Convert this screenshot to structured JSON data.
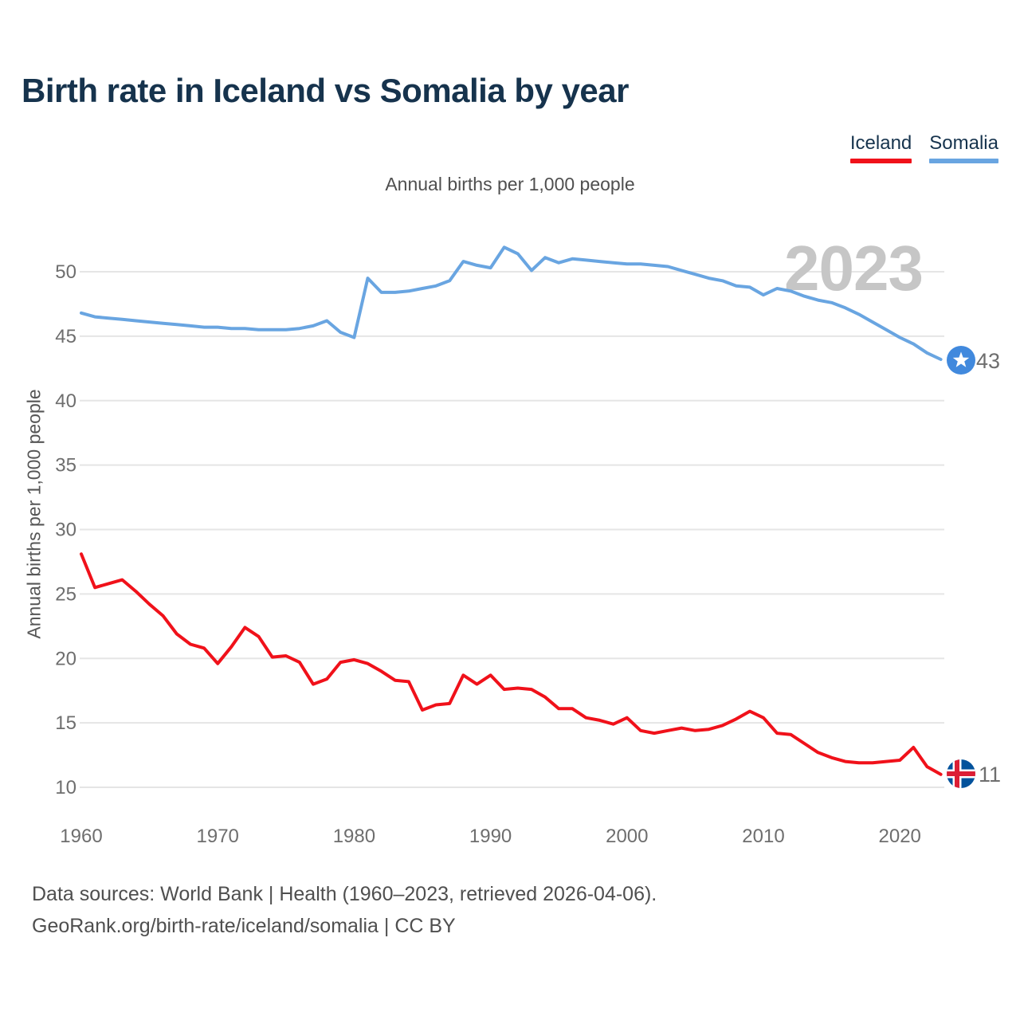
{
  "title": "Birth rate in Iceland vs Somalia by year",
  "subtitle": "Annual births per 1,000 people",
  "y_axis_title": "Annual births per 1,000 people",
  "watermark_year": "2023",
  "legend": {
    "iceland": {
      "label": "Iceland",
      "color": "#f0111a"
    },
    "somalia": {
      "label": "Somalia",
      "color": "#69a5e1"
    }
  },
  "end_labels": {
    "somalia": {
      "value": "43",
      "icon": "somalia-flag-icon",
      "color": "#69a5e1"
    },
    "iceland": {
      "value": "11",
      "icon": "iceland-flag-icon",
      "color": "#f0111a"
    }
  },
  "footer": {
    "line1": "Data sources: World Bank | Health (1960–2023, retrieved 2026-04-06).",
    "line2": "GeoRank.org/birth-rate/iceland/somalia | CC BY"
  },
  "colors": {
    "title_text": "#16334d",
    "tick_text": "#6e6e6e",
    "gridline": "#e5e5e5",
    "watermark": "#c6c6c6",
    "somalia_flag_blue": "#4189dd",
    "iceland_flag_blue": "#02529c",
    "iceland_flag_red": "#dc1e35"
  },
  "chart_data": {
    "type": "line",
    "title": "Birth rate in Iceland vs Somalia by year",
    "subtitle": "Annual births per 1,000 people",
    "ylabel": "Annual births per 1,000 people",
    "xlabel": "",
    "x": [
      1960,
      1961,
      1962,
      1963,
      1964,
      1965,
      1966,
      1967,
      1968,
      1969,
      1970,
      1971,
      1972,
      1973,
      1974,
      1975,
      1976,
      1977,
      1978,
      1979,
      1980,
      1981,
      1982,
      1983,
      1984,
      1985,
      1986,
      1987,
      1988,
      1989,
      1990,
      1991,
      1992,
      1993,
      1994,
      1995,
      1996,
      1997,
      1998,
      1999,
      2000,
      2001,
      2002,
      2003,
      2004,
      2005,
      2006,
      2007,
      2008,
      2009,
      2010,
      2011,
      2012,
      2013,
      2014,
      2015,
      2016,
      2017,
      2018,
      2019,
      2020,
      2021,
      2022,
      2023
    ],
    "series": [
      {
        "name": "Iceland",
        "color": "#f0111a",
        "values": [
          28.1,
          25.5,
          25.8,
          26.1,
          25.2,
          24.2,
          23.3,
          21.9,
          21.1,
          20.8,
          19.6,
          20.9,
          22.4,
          21.7,
          20.1,
          20.2,
          19.7,
          18.0,
          18.4,
          19.7,
          19.9,
          19.6,
          19.0,
          18.3,
          18.2,
          16.0,
          16.4,
          16.5,
          18.7,
          18.0,
          18.7,
          17.6,
          17.7,
          17.6,
          17.0,
          16.1,
          16.1,
          15.4,
          15.2,
          14.9,
          15.4,
          14.4,
          14.2,
          14.4,
          14.6,
          14.4,
          14.5,
          14.8,
          15.3,
          15.9,
          15.4,
          14.2,
          14.1,
          13.4,
          12.7,
          12.3,
          12.0,
          11.9,
          11.9,
          12.0,
          12.1,
          13.1,
          11.6,
          11.0
        ]
      },
      {
        "name": "Somalia",
        "color": "#69a5e1",
        "values": [
          46.8,
          46.5,
          46.4,
          46.3,
          46.2,
          46.1,
          46.0,
          45.9,
          45.8,
          45.7,
          45.7,
          45.6,
          45.6,
          45.5,
          45.5,
          45.5,
          45.6,
          45.8,
          46.2,
          45.3,
          44.9,
          49.5,
          48.4,
          48.4,
          48.5,
          48.7,
          48.9,
          49.3,
          50.8,
          50.5,
          50.3,
          51.9,
          51.4,
          50.1,
          51.1,
          50.7,
          51.0,
          50.9,
          50.8,
          50.7,
          50.6,
          50.6,
          50.5,
          50.4,
          50.1,
          49.8,
          49.5,
          49.3,
          48.9,
          48.8,
          48.2,
          48.7,
          48.5,
          48.1,
          47.8,
          47.6,
          47.2,
          46.7,
          46.1,
          45.5,
          44.9,
          44.4,
          43.7,
          43.2
        ]
      }
    ],
    "x_ticks": [
      1960,
      1970,
      1980,
      1990,
      2000,
      2010,
      2020
    ],
    "y_ticks": [
      10,
      15,
      20,
      25,
      30,
      35,
      40,
      45,
      50
    ],
    "ylim": [
      8.5,
      53.5
    ],
    "xlim": [
      1960,
      2023
    ],
    "grid": "horizontal",
    "legend_position": "top-right",
    "end_value_labels": {
      "Iceland": 11,
      "Somalia": 43
    }
  }
}
